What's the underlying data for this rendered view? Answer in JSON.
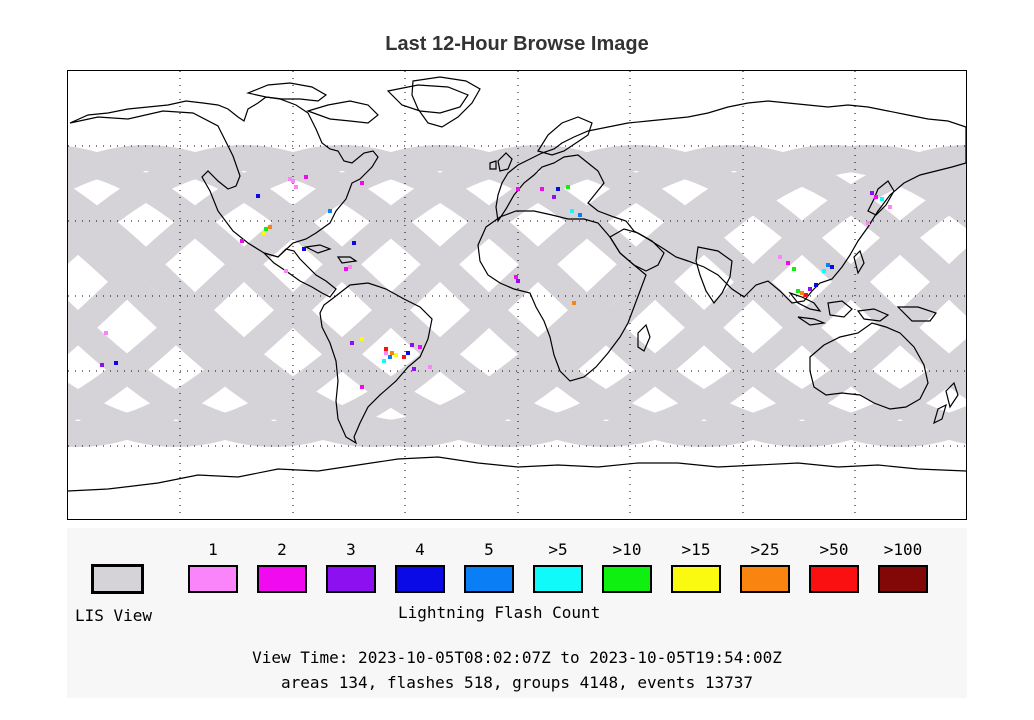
{
  "title": "Last 12-Hour Browse Image",
  "legend": {
    "lis_view_label": "LIS View",
    "lis_view_color": "#d5d2d8",
    "flash_count_label": "Lightning Flash Count",
    "bins": [
      {
        "label": "1",
        "color": "#fa84fa"
      },
      {
        "label": "2",
        "color": "#f00af0"
      },
      {
        "label": "3",
        "color": "#8c10f0"
      },
      {
        "label": "4",
        "color": "#0a0ae6"
      },
      {
        "label": "5",
        "color": "#0a7ef5"
      },
      {
        "label": ">5",
        "color": "#10fafa"
      },
      {
        "label": ">10",
        "color": "#10f010"
      },
      {
        "label": ">15",
        "color": "#fafa10"
      },
      {
        "label": ">25",
        "color": "#fa8410"
      },
      {
        "label": ">50",
        "color": "#fa1010"
      },
      {
        "label": ">100",
        "color": "#820808"
      }
    ]
  },
  "view_time": "View Time: 2023-10-05T08:02:07Z to 2023-10-05T19:54:00Z",
  "stats": "areas 134, flashes 518, groups 4148, events 13737"
}
